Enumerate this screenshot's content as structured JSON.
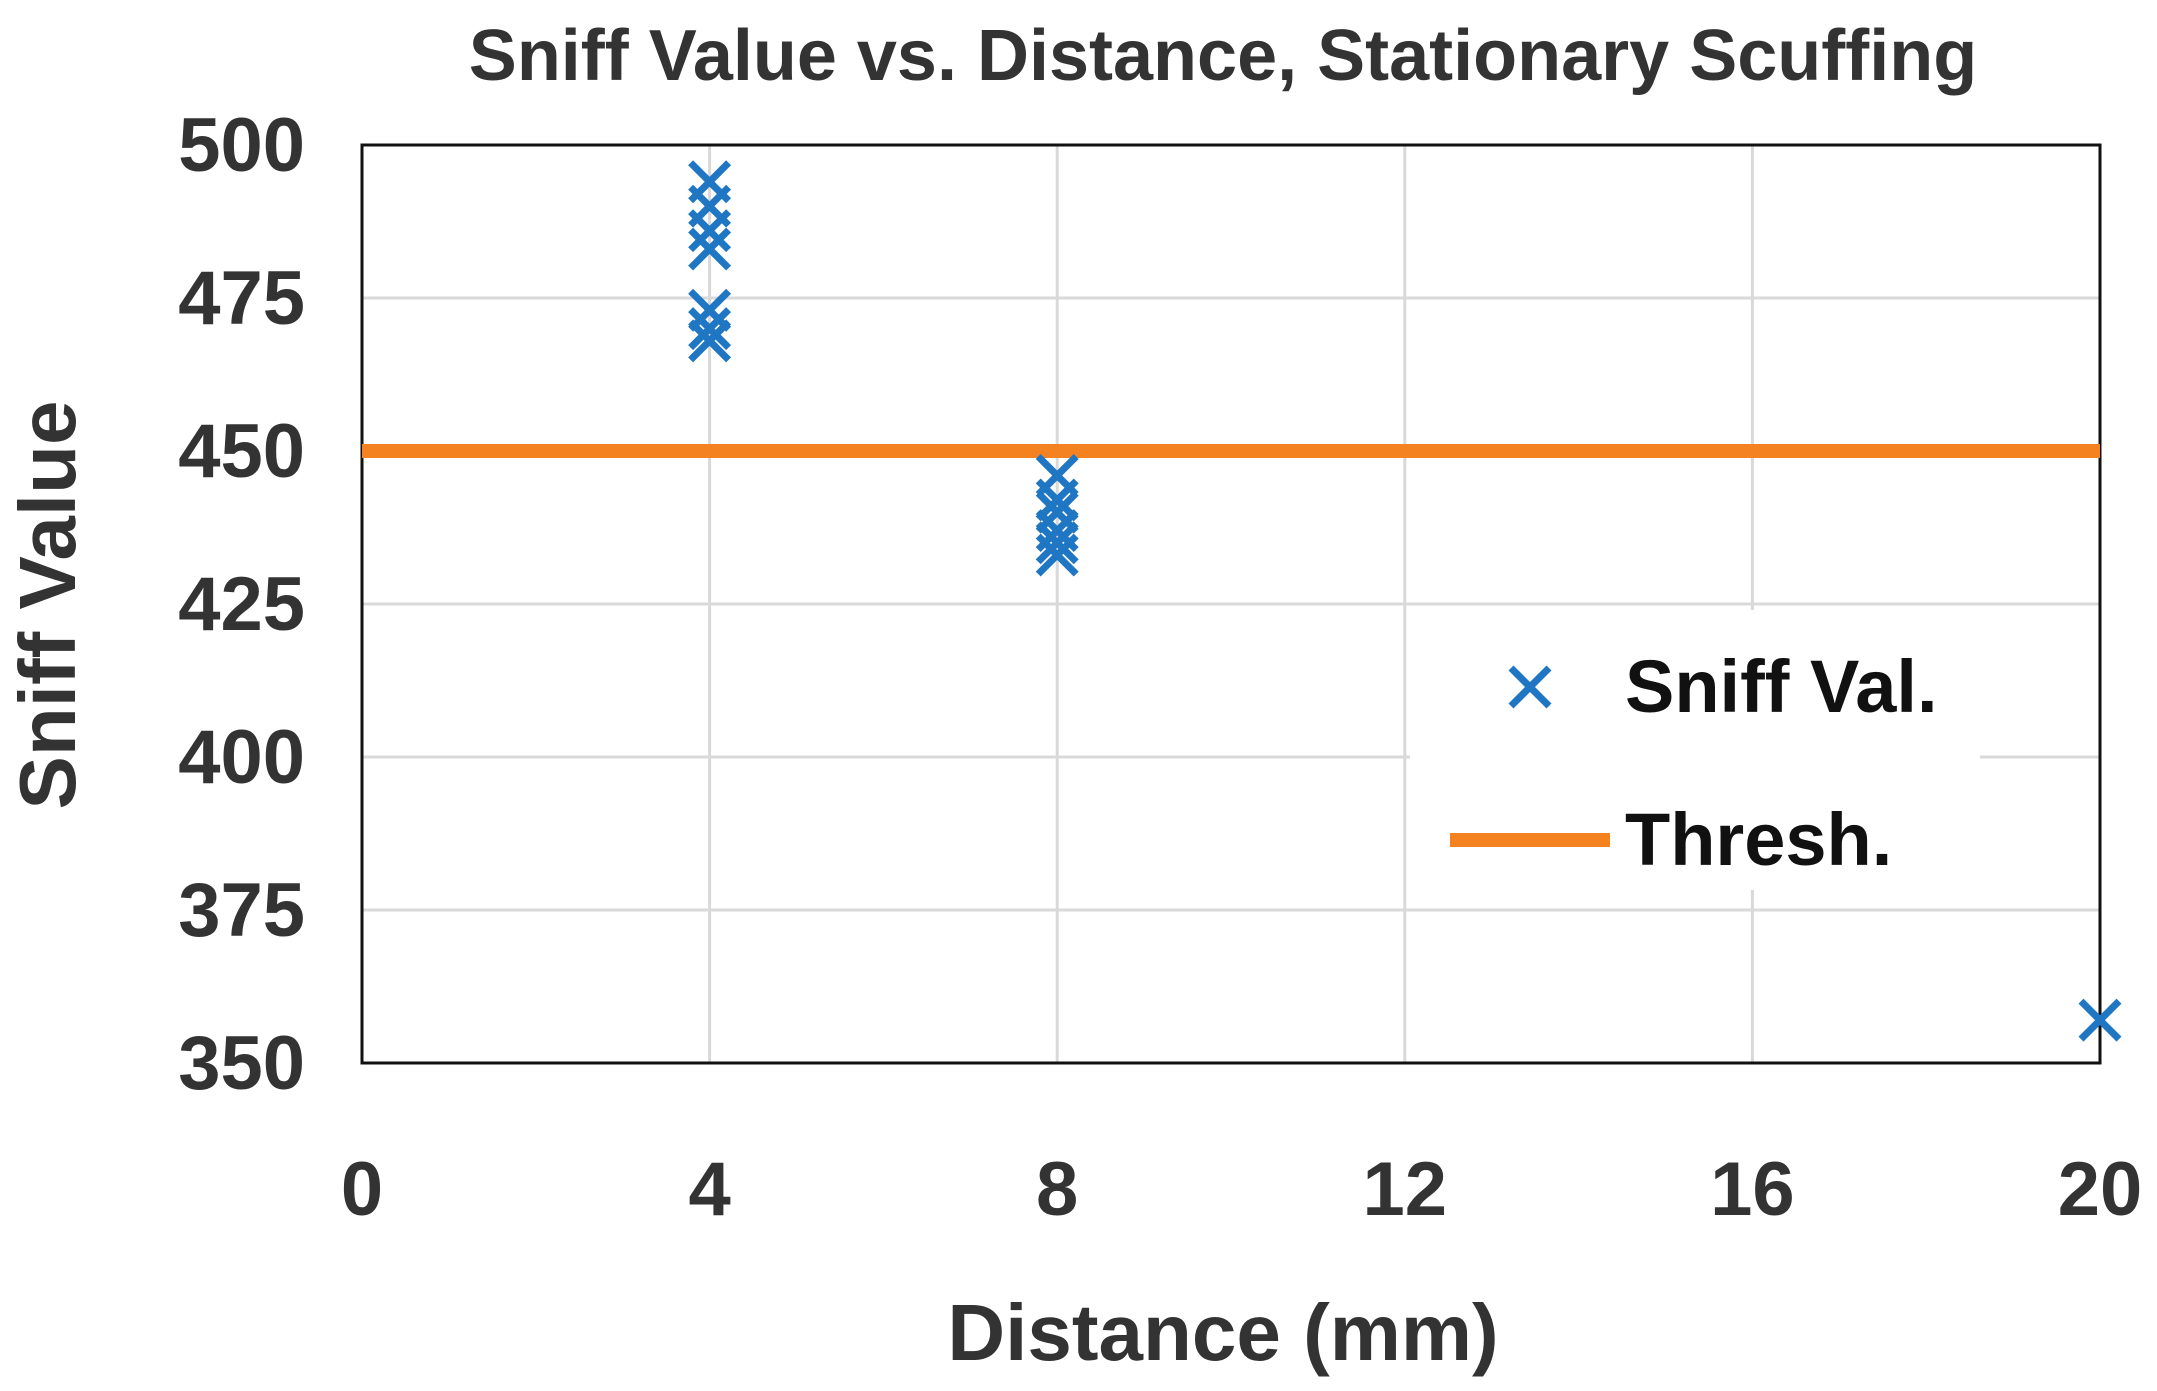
{
  "chart_data": {
    "type": "scatter",
    "title": "Sniff Value vs. Distance, Stationary Scuffing",
    "xlabel": "Distance (mm)",
    "ylabel": "Sniff Value",
    "xlim": [
      0,
      20
    ],
    "ylim": [
      350,
      500
    ],
    "x_ticks": [
      0,
      4,
      8,
      12,
      16,
      20
    ],
    "y_ticks": [
      350,
      375,
      400,
      425,
      450,
      475,
      500
    ],
    "grid": true,
    "legend_position": "right",
    "series": [
      {
        "name": "Sniff Val.",
        "kind": "scatter",
        "marker": "x",
        "color": "#1f77c4",
        "points": [
          {
            "x": 4,
            "y": 494
          },
          {
            "x": 4,
            "y": 490
          },
          {
            "x": 4,
            "y": 486
          },
          {
            "x": 4,
            "y": 483
          },
          {
            "x": 4,
            "y": 473
          },
          {
            "x": 4,
            "y": 470
          },
          {
            "x": 4,
            "y": 468
          },
          {
            "x": 8,
            "y": 446
          },
          {
            "x": 8,
            "y": 442
          },
          {
            "x": 8,
            "y": 440
          },
          {
            "x": 8,
            "y": 437
          },
          {
            "x": 8,
            "y": 435
          },
          {
            "x": 8,
            "y": 433
          },
          {
            "x": 20,
            "y": 357
          }
        ]
      },
      {
        "name": "Thresh.",
        "kind": "line",
        "color": "#f58220",
        "points": [
          {
            "x": 0,
            "y": 450
          },
          {
            "x": 20,
            "y": 450
          }
        ]
      }
    ]
  }
}
